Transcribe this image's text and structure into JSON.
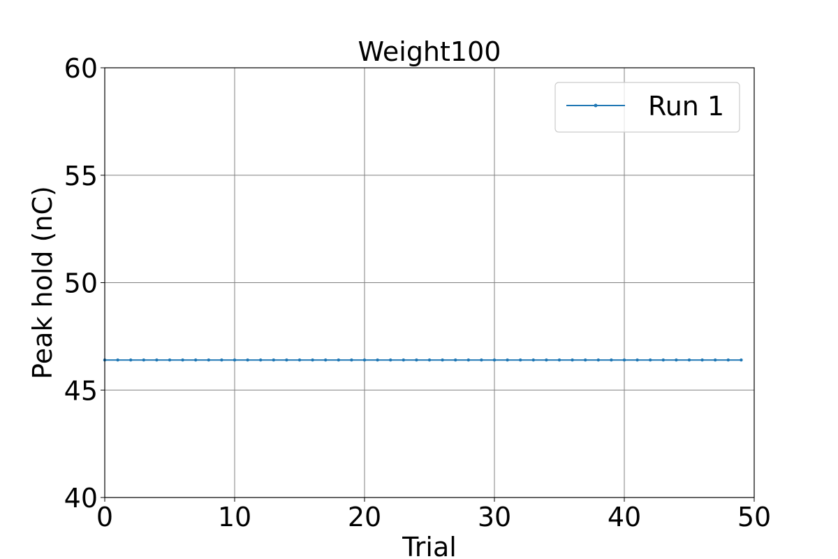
{
  "chart_data": {
    "type": "line",
    "title": "Weight100",
    "xlabel": "Trial",
    "ylabel": "Peak hold (nC)",
    "xlim": [
      0,
      50
    ],
    "ylim": [
      40,
      60
    ],
    "xticks": [
      0,
      10,
      20,
      30,
      40,
      50
    ],
    "yticks": [
      40,
      45,
      50,
      55,
      60
    ],
    "grid": true,
    "legend_position": "top-right",
    "series": [
      {
        "name": "Run 1",
        "color": "#1f77b4",
        "marker": "point",
        "x": [
          0,
          1,
          2,
          3,
          4,
          5,
          6,
          7,
          8,
          9,
          10,
          11,
          12,
          13,
          14,
          15,
          16,
          17,
          18,
          19,
          20,
          21,
          22,
          23,
          24,
          25,
          26,
          27,
          28,
          29,
          30,
          31,
          32,
          33,
          34,
          35,
          36,
          37,
          38,
          39,
          40,
          41,
          42,
          43,
          44,
          45,
          46,
          47,
          48,
          49
        ],
        "y": [
          46.4,
          46.4,
          46.4,
          46.4,
          46.4,
          46.4,
          46.4,
          46.4,
          46.4,
          46.4,
          46.4,
          46.4,
          46.4,
          46.4,
          46.4,
          46.4,
          46.4,
          46.4,
          46.4,
          46.4,
          46.4,
          46.4,
          46.4,
          46.4,
          46.4,
          46.4,
          46.4,
          46.4,
          46.4,
          46.4,
          46.4,
          46.4,
          46.4,
          46.4,
          46.4,
          46.4,
          46.4,
          46.4,
          46.4,
          46.4,
          46.4,
          46.4,
          46.4,
          46.4,
          46.4,
          46.4,
          46.4,
          46.4,
          46.4,
          46.4
        ]
      }
    ]
  }
}
